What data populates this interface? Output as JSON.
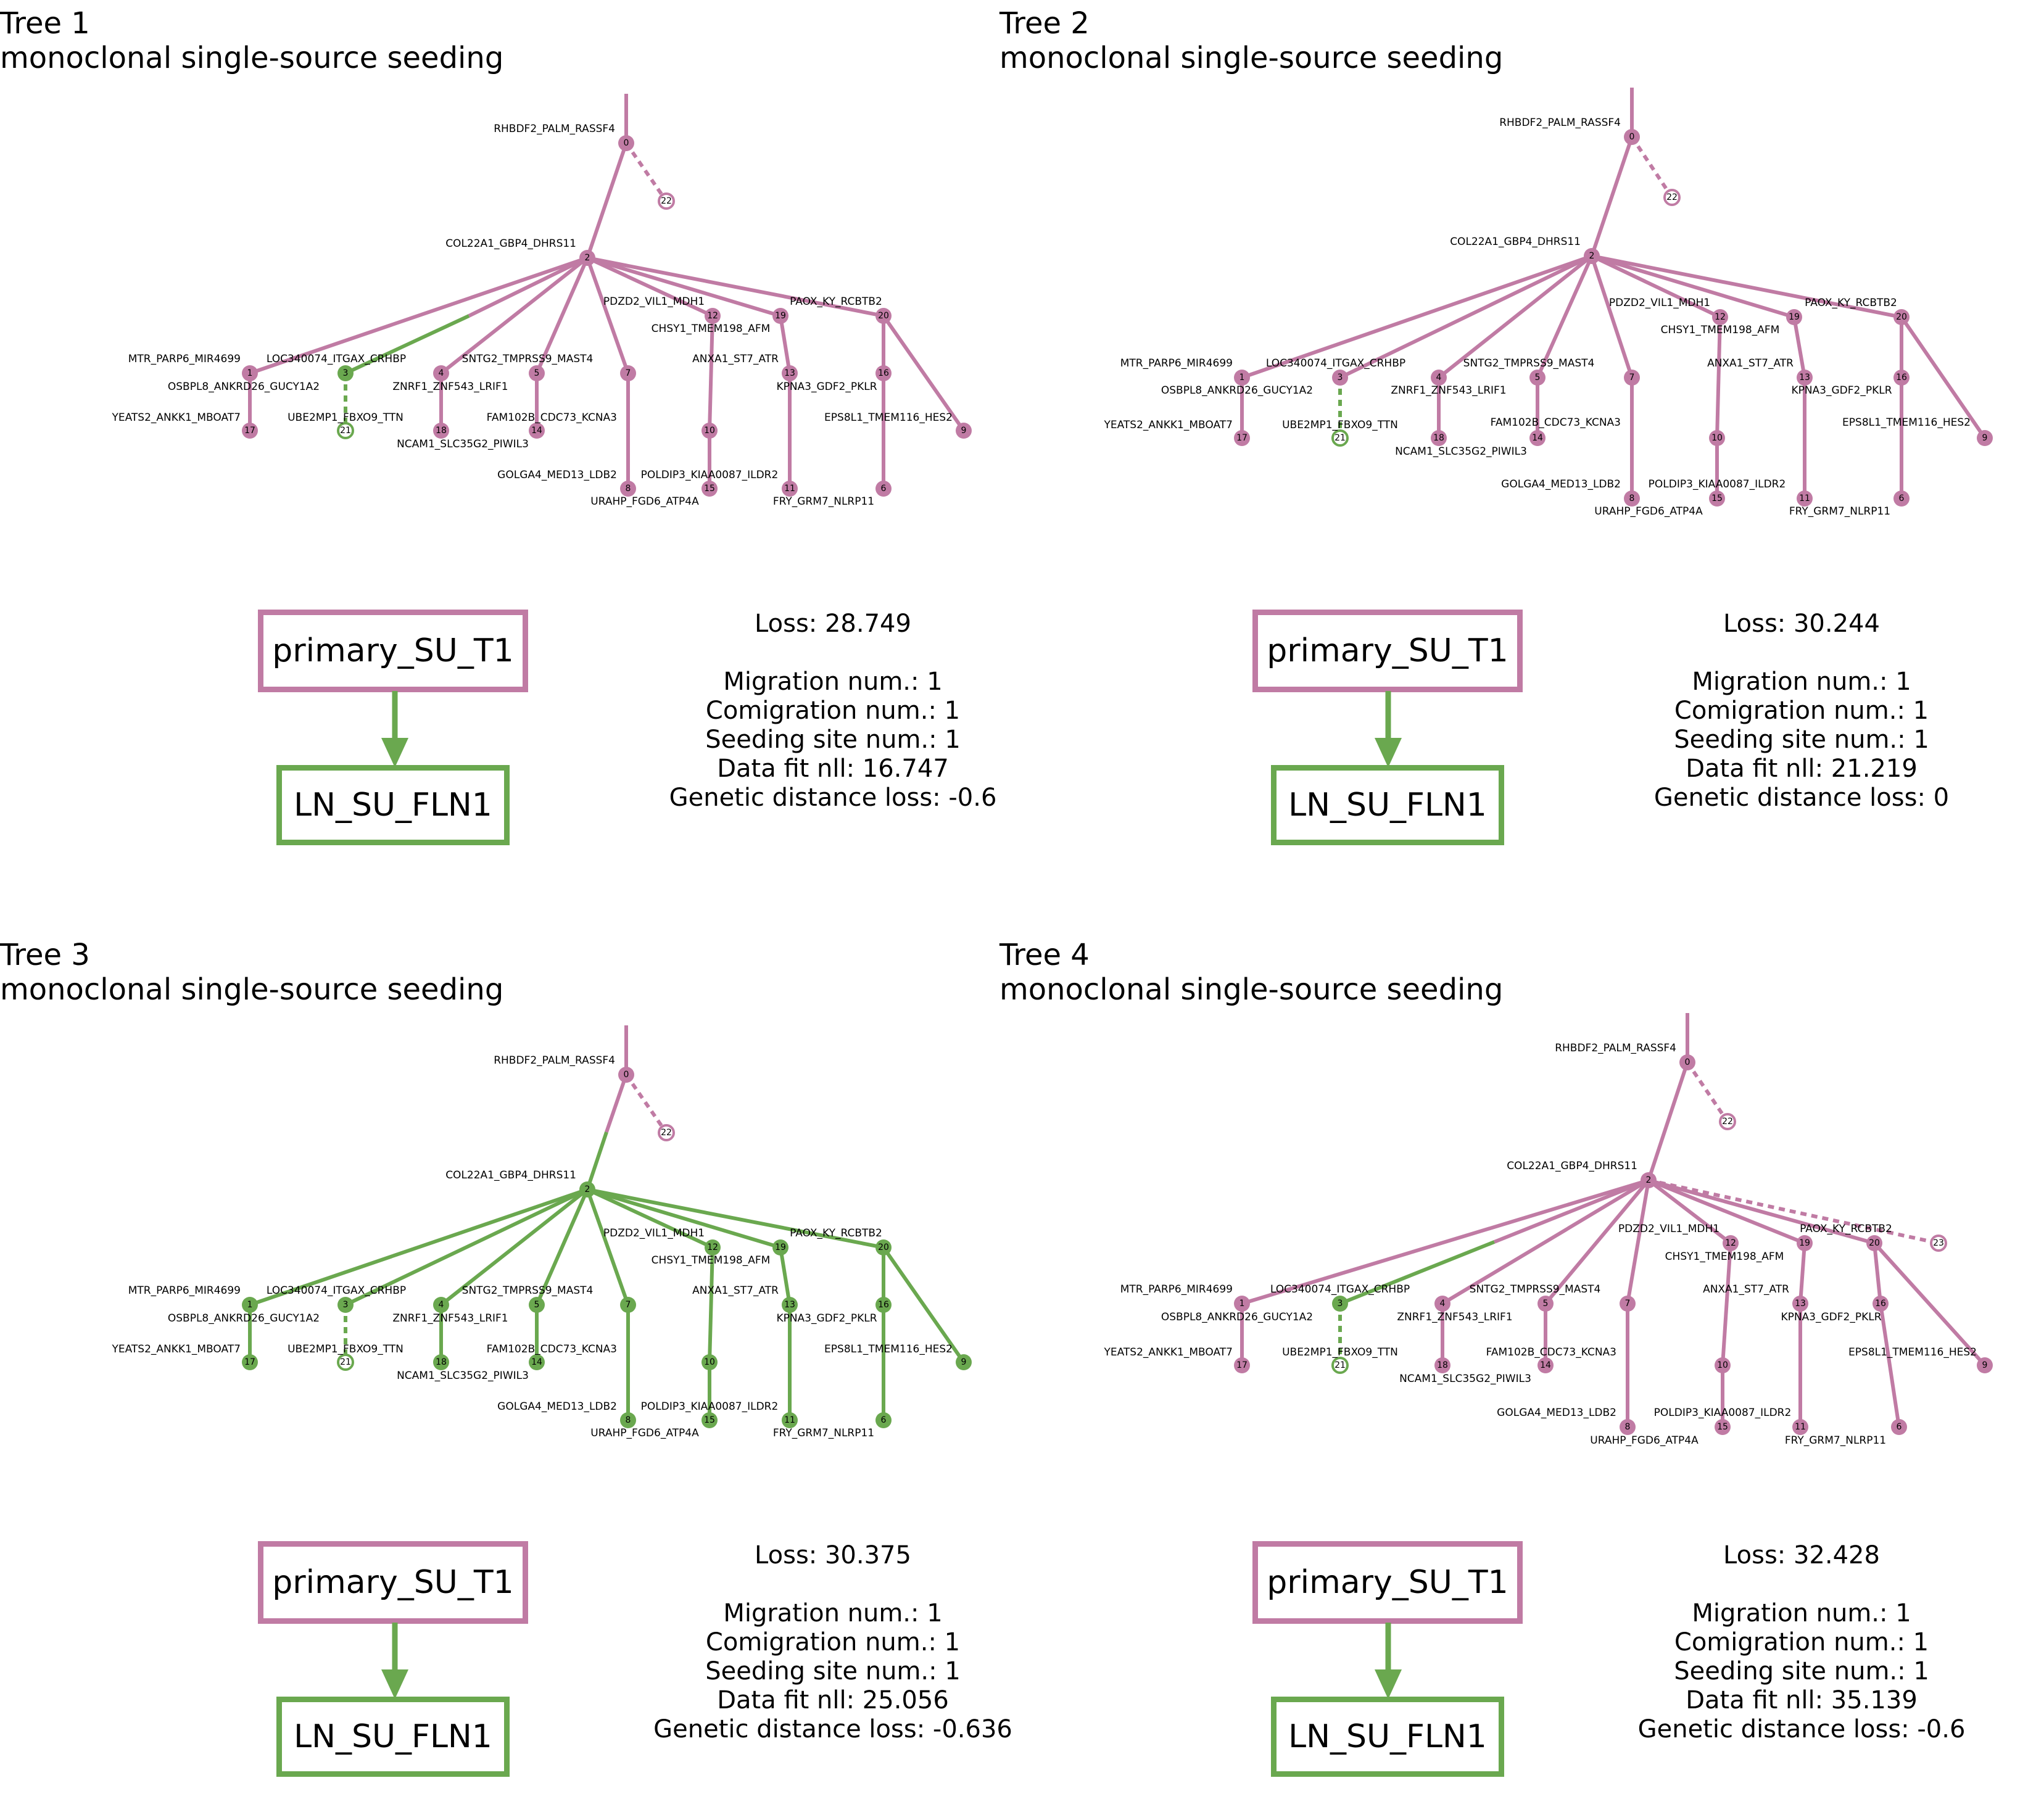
{
  "colors": {
    "primary": "#c07ba4",
    "metastasis": "#6aa84f"
  },
  "labels": {
    "0": "RHBDF2_PALM_RASSF4",
    "2": "COL22A1_GBP4_DHRS11",
    "1": "MTR_PARP6_MIR4699",
    "17": "OSBPL8_ANKRD26_GUCY1A2",
    "17b": "YEATS2_ANKK1_MBOAT7",
    "3": "LOC340074_ITGAX_CRHBP",
    "21": "UBE2MP1_FBXO9_TTN",
    "4": "ZNRF1_ZNF543_LRIF1",
    "18": "NCAM1_SLC35G2_PIWIL3",
    "5": "SNTG2_TMPRSS9_MAST4",
    "7": "FAM102B_CDC73_KCNA3",
    "8": "GOLGA4_MED13_LDB2",
    "8b": "URAHP_FGD6_ATP4A",
    "12": "PDZD2_VIL1_MDH1",
    "10": "CHSY1_TMEM198_AFM",
    "15": "POLDIP3_KIAA0087_ILDR2",
    "19": "PAOX_KY_RCBTB2",
    "13": "ANXA1_ST7_ATR",
    "11": "KPNA3_GDF2_PKLR",
    "11b": "FRY_GRM7_NLRP11",
    "16": "EPS8L1_TMEM116_HES2"
  },
  "trees": [
    {
      "title": "Tree 1",
      "subtitle": "monoclonal single-source seeding",
      "source": "primary_SU_T1",
      "target": "LN_SU_FLN1",
      "loss": "Loss: 28.749",
      "migration": "Migration num.: 1",
      "comigration": "Comigration num.: 1",
      "seeding": "Seeding site num.: 1",
      "datafit": "Data fit nll: 16.747",
      "genetic": "Genetic distance loss: -0.6"
    },
    {
      "title": "Tree 2",
      "subtitle": "monoclonal single-source seeding",
      "source": "primary_SU_T1",
      "target": "LN_SU_FLN1",
      "loss": "Loss: 30.244",
      "migration": "Migration num.: 1",
      "comigration": "Comigration num.: 1",
      "seeding": "Seeding site num.: 1",
      "datafit": "Data fit nll: 21.219",
      "genetic": "Genetic distance loss: 0"
    },
    {
      "title": "Tree 3",
      "subtitle": "monoclonal single-source seeding",
      "source": "primary_SU_T1",
      "target": "LN_SU_FLN1",
      "loss": "Loss: 30.375",
      "migration": "Migration num.: 1",
      "comigration": "Comigration num.: 1",
      "seeding": "Seeding site num.: 1",
      "datafit": "Data fit nll: 25.056",
      "genetic": "Genetic distance loss: -0.636"
    },
    {
      "title": "Tree 4",
      "subtitle": "monoclonal single-source seeding",
      "source": "primary_SU_T1",
      "target": "LN_SU_FLN1",
      "loss": "Loss: 32.428",
      "migration": "Migration num.: 1",
      "comigration": "Comigration num.: 1",
      "seeding": "Seeding site num.: 1",
      "datafit": "Data fit nll: 35.139",
      "genetic": "Genetic distance loss: -0.6"
    }
  ]
}
